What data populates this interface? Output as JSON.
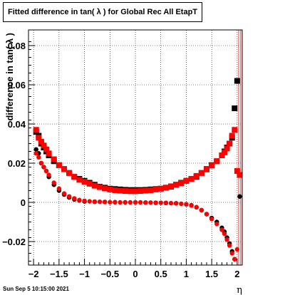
{
  "footer": {
    "timestamp": "Sun Sep  5 10:15:00 2021"
  },
  "chart_data": {
    "type": "scatter",
    "title": "Fitted difference in tan( λ ) for Global Rec All EtapT",
    "xlabel": "η",
    "ylabel": "difference in tan( λ )",
    "xlim": [
      -2.1,
      2.1
    ],
    "ylim": [
      -0.032,
      0.088
    ],
    "grid": true,
    "x_ticks": [
      -2,
      -1.5,
      -1,
      -0.5,
      0,
      0.5,
      1,
      1.5,
      2
    ],
    "x_tick_labels": [
      "−2",
      "−1.5",
      "−1",
      "−0.5",
      "0",
      "0.5",
      "1",
      "1.5",
      "2"
    ],
    "y_ticks": [
      -0.02,
      0,
      0.02,
      0.04,
      0.06,
      0.08
    ],
    "y_tick_labels": [
      "−0.02",
      "0",
      "0.02",
      "0.04",
      "0.06",
      "0.08"
    ],
    "colors": {
      "red": "#ff0000",
      "black": "#000000"
    },
    "series": [
      {
        "marker": "square",
        "color": "#000000",
        "x": [
          -1.95,
          -1.9,
          -1.85,
          -1.8,
          -1.75,
          -1.7,
          -1.6,
          -1.5,
          -1.4,
          -1.3,
          -1.2,
          -1.1,
          -1.0,
          -0.9,
          -0.8,
          -0.7,
          -0.6,
          -0.5,
          -0.4,
          -0.3,
          -0.2,
          -0.1,
          0.0,
          0.1,
          0.2,
          0.3,
          0.4,
          0.5,
          0.6,
          0.7,
          0.8,
          0.9,
          1.0,
          1.1,
          1.2,
          1.3,
          1.4,
          1.5,
          1.6,
          1.7,
          1.75,
          1.8,
          1.85,
          1.9,
          1.95,
          2.0
        ],
        "y": [
          0.036,
          0.034,
          0.03,
          0.028,
          0.026,
          0.024,
          0.021,
          0.019,
          0.017,
          0.015,
          0.013,
          0.012,
          0.011,
          0.01,
          0.009,
          0.008,
          0.0075,
          0.007,
          0.0068,
          0.0066,
          0.0064,
          0.0063,
          0.0063,
          0.0063,
          0.0064,
          0.0066,
          0.0068,
          0.007,
          0.0075,
          0.008,
          0.009,
          0.01,
          0.011,
          0.012,
          0.013,
          0.015,
          0.017,
          0.019,
          0.021,
          0.024,
          0.026,
          0.028,
          0.03,
          0.033,
          0.048,
          0.062
        ]
      },
      {
        "marker": "square",
        "color": "#ff0000",
        "x": [
          -1.95,
          -1.9,
          -1.85,
          -1.8,
          -1.75,
          -1.7,
          -1.6,
          -1.5,
          -1.4,
          -1.3,
          -1.2,
          -1.1,
          -1.0,
          -0.9,
          -0.8,
          -0.7,
          -0.6,
          -0.5,
          -0.4,
          -0.3,
          -0.2,
          -0.1,
          0.0,
          0.1,
          0.2,
          0.3,
          0.4,
          0.5,
          0.6,
          0.7,
          0.8,
          0.9,
          1.0,
          1.1,
          1.2,
          1.3,
          1.4,
          1.5,
          1.6,
          1.7,
          1.75,
          1.8,
          1.85,
          1.9,
          1.95,
          2.0,
          2.05
        ],
        "y": [
          0.037,
          0.033,
          0.031,
          0.029,
          0.027,
          0.025,
          0.022,
          0.019,
          0.017,
          0.015,
          0.013,
          0.0115,
          0.0105,
          0.0095,
          0.0085,
          0.0078,
          0.0071,
          0.0066,
          0.0062,
          0.006,
          0.0058,
          0.0057,
          0.0057,
          0.0058,
          0.006,
          0.0062,
          0.0066,
          0.007,
          0.0075,
          0.0082,
          0.009,
          0.0098,
          0.011,
          0.012,
          0.0135,
          0.015,
          0.0168,
          0.0188,
          0.021,
          0.024,
          0.0255,
          0.0275,
          0.03,
          0.034,
          0.037,
          0.016,
          0.014
        ]
      },
      {
        "marker": "circle",
        "color": "#000000",
        "x": [
          -1.95,
          -1.9,
          -1.85,
          -1.8,
          -1.75,
          -1.7,
          -1.6,
          -1.5,
          -1.4,
          -1.3,
          -1.2,
          -1.1,
          -1.0,
          -0.8,
          -0.6,
          -0.4,
          -0.2,
          0.0,
          0.2,
          0.4,
          0.6,
          0.8,
          1.0,
          1.1,
          1.2,
          1.3,
          1.4,
          1.5,
          1.6,
          1.7,
          1.75,
          1.8,
          1.85,
          1.9,
          1.95,
          2.05
        ],
        "y": [
          0.027,
          0.025,
          0.02,
          0.018,
          0.016,
          0.013,
          0.009,
          0.006,
          0.004,
          0.0025,
          0.0015,
          0.001,
          0.0005,
          0.0003,
          0.0002,
          0.0001,
          0.0,
          0.0,
          -0.0001,
          -0.0002,
          -0.0003,
          -0.0005,
          -0.001,
          -0.0015,
          -0.0025,
          -0.004,
          -0.006,
          -0.008,
          -0.01,
          -0.013,
          -0.015,
          -0.018,
          -0.021,
          -0.025,
          -0.029,
          0.003
        ]
      },
      {
        "marker": "circle",
        "color": "#ff0000",
        "x": [
          -1.95,
          -1.9,
          -1.85,
          -1.8,
          -1.75,
          -1.7,
          -1.6,
          -1.5,
          -1.4,
          -1.3,
          -1.2,
          -1.1,
          -1.0,
          -0.9,
          -0.8,
          -0.7,
          -0.6,
          -0.5,
          -0.4,
          -0.3,
          -0.2,
          -0.1,
          0.0,
          0.1,
          0.2,
          0.3,
          0.4,
          0.5,
          0.6,
          0.7,
          0.8,
          0.9,
          1.0,
          1.1,
          1.2,
          1.3,
          1.4,
          1.5,
          1.6,
          1.7,
          1.75,
          1.8,
          1.85,
          1.9,
          1.95,
          2.0
        ],
        "y": [
          0.025,
          0.023,
          0.02,
          0.018,
          0.016,
          0.014,
          0.01,
          0.007,
          0.0045,
          0.003,
          0.002,
          0.0012,
          0.0008,
          0.0005,
          0.0004,
          0.0003,
          0.0002,
          0.0001,
          0.0001,
          0.0,
          0.0,
          0.0,
          0.0,
          0.0,
          -0.0001,
          -0.0001,
          -0.0002,
          -0.0002,
          -0.0003,
          -0.0004,
          -0.0005,
          -0.0007,
          -0.001,
          -0.0016,
          -0.0025,
          -0.004,
          -0.006,
          -0.0085,
          -0.011,
          -0.014,
          -0.016,
          -0.019,
          -0.022,
          -0.026,
          -0.029,
          -0.024
        ]
      }
    ],
    "vertical_lines": [
      {
        "x": 2.03,
        "color": "#ff0000"
      },
      {
        "x": 2.07,
        "color": "#ff0000"
      }
    ]
  }
}
